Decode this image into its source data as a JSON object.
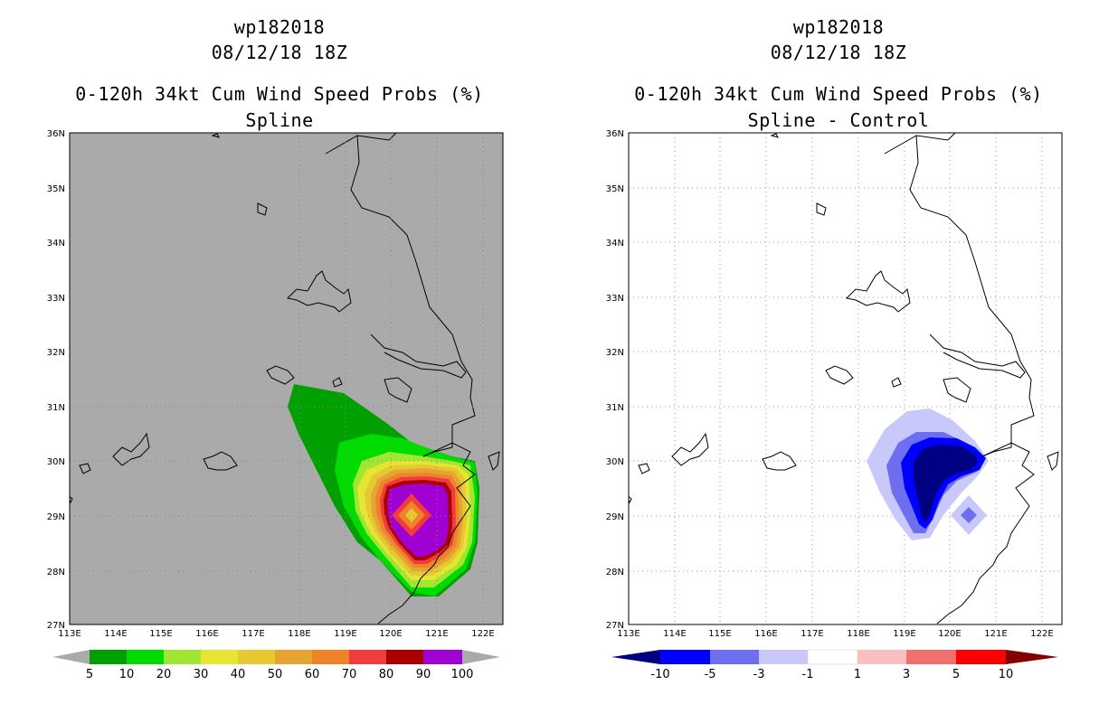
{
  "left": {
    "title_storm": "wp182018",
    "title_date": "08/12/18 18Z",
    "title_product": "0-120h 34kt Cum Wind Speed Probs (%)",
    "title_variant": "Spline",
    "background_color": "#aaaaaa",
    "lat_labels": [
      "36N",
      "35N",
      "34N",
      "33N",
      "32N",
      "31N",
      "30N",
      "29N",
      "28N",
      "27N"
    ],
    "lon_labels": [
      "113E",
      "114E",
      "115E",
      "116E",
      "117E",
      "118E",
      "119E",
      "120E",
      "121E",
      "122E"
    ],
    "colorbar": {
      "labels": [
        "5",
        "10",
        "20",
        "30",
        "40",
        "50",
        "60",
        "70",
        "80",
        "90",
        "100"
      ],
      "colors": [
        "#00a000",
        "#00dc00",
        "#a0e632",
        "#e6e632",
        "#e6c832",
        "#e6a532",
        "#f08228",
        "#f03c3c",
        "#aa0000",
        "#a000d2"
      ],
      "end_color": "#aaaaaa"
    }
  },
  "right": {
    "title_storm": "wp182018",
    "title_date": "08/12/18 18Z",
    "title_product": "0-120h 34kt Cum Wind Speed Probs (%)",
    "title_variant": "Spline - Control",
    "background_color": "#ffffff",
    "lat_labels": [
      "36N",
      "35N",
      "34N",
      "33N",
      "32N",
      "31N",
      "30N",
      "29N",
      "28N",
      "27N"
    ],
    "lon_labels": [
      "113E",
      "114E",
      "115E",
      "116E",
      "117E",
      "118E",
      "119E",
      "120E",
      "121E",
      "122E"
    ],
    "colorbar": {
      "labels": [
        "-10",
        "-5",
        "-3",
        "-1",
        "1",
        "3",
        "5",
        "10"
      ],
      "colors": [
        "#0000ff",
        "#6e6ef0",
        "#c8c8fa",
        "#ffffff",
        "#f8c0c0",
        "#f07070",
        "#ff0000"
      ],
      "low_color": "#000082",
      "high_color": "#820000"
    }
  }
}
